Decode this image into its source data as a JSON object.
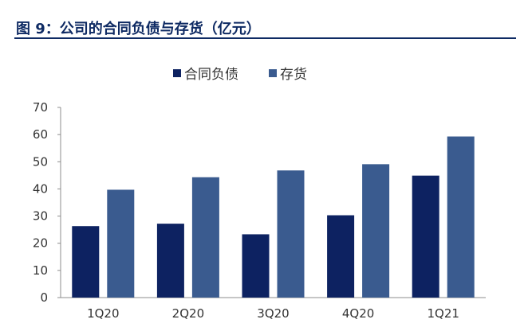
{
  "header": {
    "caption": "图 9：公司的合同负债与存货（亿元）"
  },
  "chart_data": {
    "type": "bar",
    "title": "",
    "xlabel": "",
    "ylabel": "",
    "categories": [
      "1Q20",
      "2Q20",
      "3Q20",
      "4Q20",
      "1Q21"
    ],
    "series": [
      {
        "name": "合同负债",
        "color": "#0d2261",
        "values": [
          26.3,
          27.2,
          23.3,
          30.3,
          44.9
        ]
      },
      {
        "name": "存货",
        "color": "#3a5b8f",
        "values": [
          39.7,
          44.3,
          46.8,
          49.1,
          59.3
        ]
      }
    ],
    "ylim": [
      0,
      70
    ],
    "yticks": [
      0,
      10,
      20,
      30,
      40,
      50,
      60,
      70
    ],
    "grid": false,
    "legend_position": "top"
  }
}
